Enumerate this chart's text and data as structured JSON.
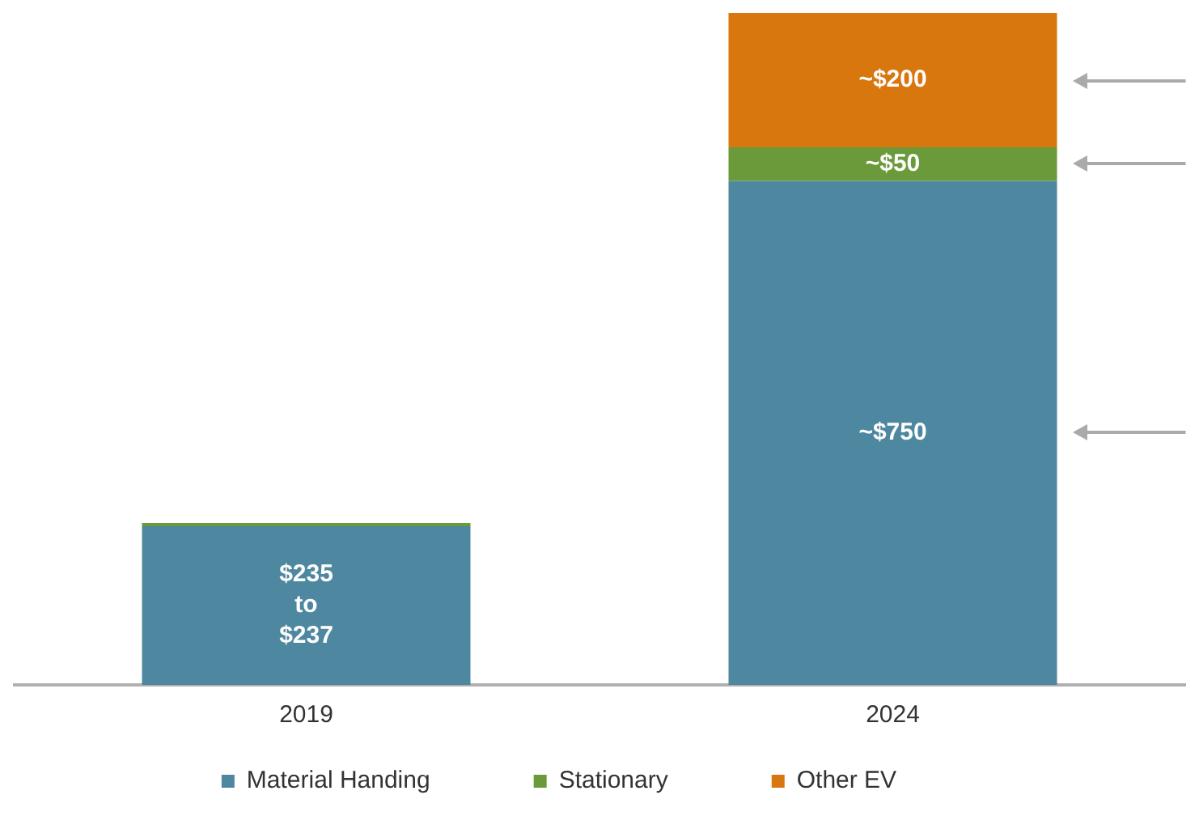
{
  "chart_data": {
    "type": "bar",
    "stacked": true,
    "categories": [
      "2019",
      "2024"
    ],
    "ylim": [
      0,
      1000
    ],
    "tick_labels": "x",
    "grid": false,
    "legend": "bottom",
    "annotations": [
      "$235 to $237"
    ],
    "series": [
      {
        "name": "Material Handing",
        "color": "#4e87a0",
        "values": [
          236,
          750
        ],
        "value_labels": [
          null,
          "~$750"
        ]
      },
      {
        "name": "Stationary",
        "color": "#6a9a3a",
        "values": [
          5,
          50
        ],
        "value_labels": [
          null,
          "~$50"
        ]
      },
      {
        "name": "Other EV",
        "color": "#d9770f",
        "values": [
          0,
          200
        ],
        "value_labels": [
          null,
          "~$200"
        ]
      }
    ]
  }
}
